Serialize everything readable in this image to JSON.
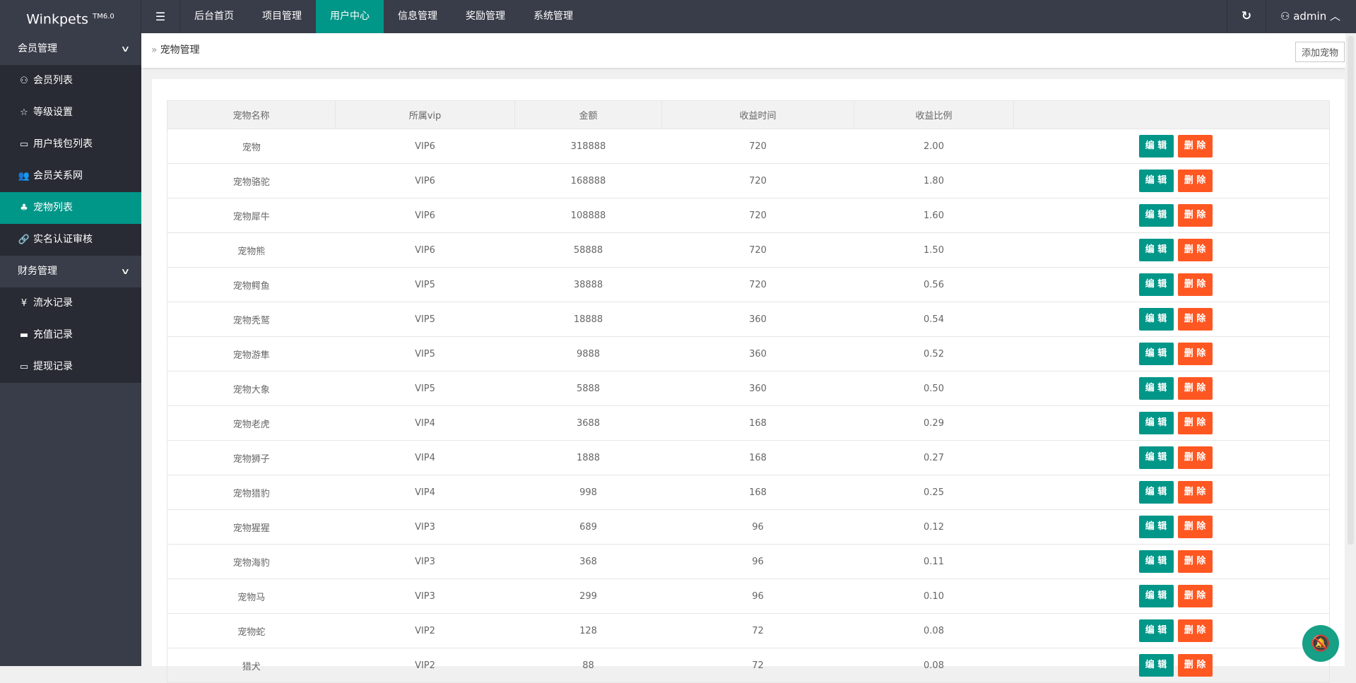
{
  "app": {
    "logo": "Winkpets",
    "logo_sup": "TM6.0"
  },
  "topnav": {
    "items": [
      "后台首页",
      "项目管理",
      "用户中心",
      "信息管理",
      "奖励管理",
      "系统管理"
    ],
    "active": "用户中心",
    "user": "admin"
  },
  "sidebar": {
    "groups": [
      {
        "label": "会员管理",
        "items": [
          {
            "label": "会员列表",
            "icon": "user-icon"
          },
          {
            "label": "等级设置",
            "icon": "star-icon"
          },
          {
            "label": "用户钱包列表",
            "icon": "card-icon"
          },
          {
            "label": "会员关系网",
            "icon": "users-icon"
          },
          {
            "label": "宠物列表",
            "icon": "pet-icon",
            "active": true
          },
          {
            "label": "实名认证审核",
            "icon": "link-icon"
          }
        ]
      },
      {
        "label": "财务管理",
        "items": [
          {
            "label": "流水记录",
            "icon": "yen-icon"
          },
          {
            "label": "充值记录",
            "icon": "paypal-icon"
          },
          {
            "label": "提现记录",
            "icon": "card-icon"
          }
        ]
      }
    ]
  },
  "breadcrumb": {
    "title": "宠物管理",
    "add_button": "添加宠物"
  },
  "table": {
    "headers": [
      "宠物名称",
      "所属vip",
      "金额",
      "收益时间",
      "收益比例",
      ""
    ],
    "edit_label": "编 辑",
    "delete_label": "删 除",
    "rows": [
      [
        "宠物",
        "VIP6",
        "318888",
        "720",
        "2.00"
      ],
      [
        "宠物骆驼",
        "VIP6",
        "168888",
        "720",
        "1.80"
      ],
      [
        "宠物犀牛",
        "VIP6",
        "108888",
        "720",
        "1.60"
      ],
      [
        "宠物熊",
        "VIP6",
        "58888",
        "720",
        "1.50"
      ],
      [
        "宠物鳄鱼",
        "VIP5",
        "38888",
        "720",
        "0.56"
      ],
      [
        "宠物秃鹫",
        "VIP5",
        "18888",
        "360",
        "0.54"
      ],
      [
        "宠物游隼",
        "VIP5",
        "9888",
        "360",
        "0.52"
      ],
      [
        "宠物大象",
        "VIP5",
        "5888",
        "360",
        "0.50"
      ],
      [
        "宠物老虎",
        "VIP4",
        "3688",
        "168",
        "0.29"
      ],
      [
        "宠物狮子",
        "VIP4",
        "1888",
        "168",
        "0.27"
      ],
      [
        "宠物猎豹",
        "VIP4",
        "998",
        "168",
        "0.25"
      ],
      [
        "宠物猩猩",
        "VIP3",
        "689",
        "96",
        "0.12"
      ],
      [
        "宠物海豹",
        "VIP3",
        "368",
        "96",
        "0.11"
      ],
      [
        "宠物马",
        "VIP3",
        "299",
        "96",
        "0.10"
      ],
      [
        "宠物蛇",
        "VIP2",
        "128",
        "72",
        "0.08"
      ],
      [
        "猎犬",
        "VIP2",
        "88",
        "72",
        "0.08"
      ]
    ]
  },
  "colors": {
    "accent": "#009688",
    "danger": "#ff5722",
    "topbar": "#393d49",
    "sidebar_sub": "#282b33"
  }
}
